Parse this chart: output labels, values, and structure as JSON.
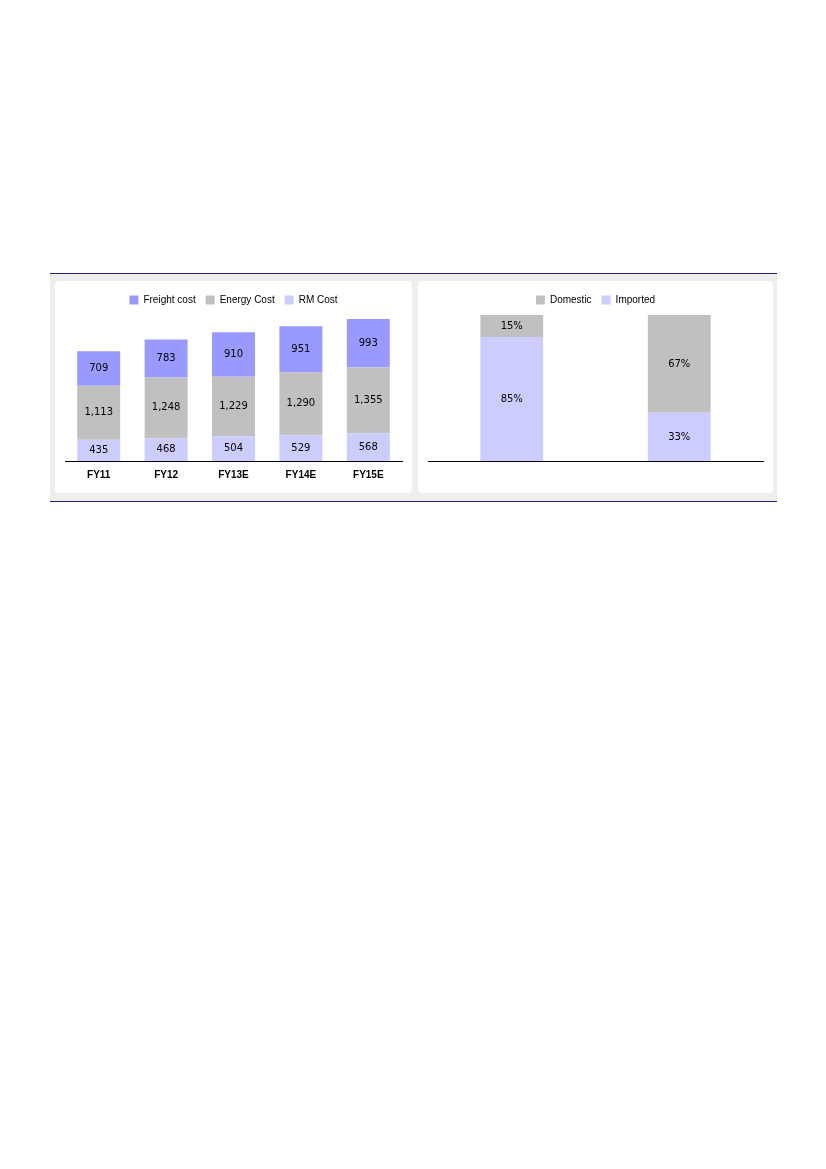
{
  "chart_data": [
    {
      "type": "bar",
      "stacked": true,
      "categories": [
        "FY11",
        "FY12",
        "FY13E",
        "FY14E",
        "FY15E"
      ],
      "tick_labels": "x",
      "grid": false,
      "legend": "top",
      "series": [
        {
          "name": "RM Cost",
          "color": "#ccccff",
          "values": [
            435,
            468,
            504,
            529,
            568
          ],
          "value_labels": [
            "435",
            "468",
            "504",
            "529",
            "568"
          ]
        },
        {
          "name": "Energy Cost",
          "color": "#c0c0c0",
          "values": [
            1113,
            1248,
            1229,
            1290,
            1355
          ],
          "value_labels": [
            "1,113",
            "1,248",
            "1,229",
            "1,290",
            "1,355"
          ]
        },
        {
          "name": "Freight cost",
          "color": "#9999ff",
          "values": [
            709,
            783,
            910,
            951,
            993
          ],
          "value_labels": [
            "709",
            "783",
            "910",
            "951",
            "993"
          ]
        }
      ]
    },
    {
      "type": "bar",
      "stacked": true,
      "categories": [
        null,
        null
      ],
      "tick_labels": "x",
      "grid": false,
      "legend": "top",
      "series": [
        {
          "name": "Imported",
          "color": "#ccccff",
          "values": [
            85,
            33
          ],
          "value_labels": [
            "85%",
            "33%"
          ]
        },
        {
          "name": "Domestic",
          "color": "#c0c0c0",
          "values": [
            15,
            67
          ],
          "value_labels": [
            "15%",
            "67%"
          ]
        }
      ]
    }
  ]
}
